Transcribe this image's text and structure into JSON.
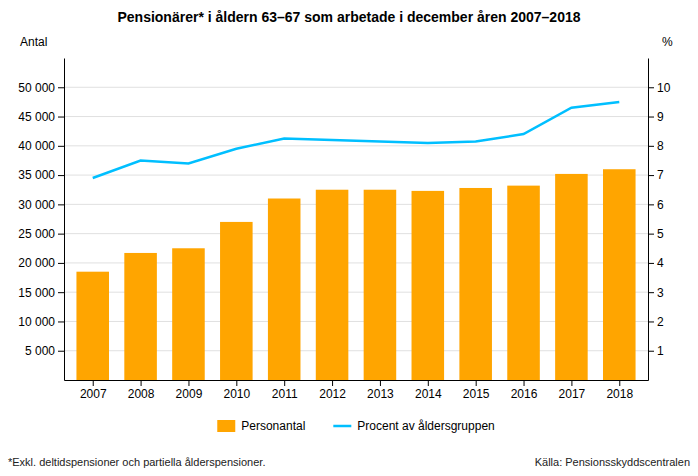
{
  "chart_data": {
    "type": "bar",
    "title": "Pensionärer* i åldern 63–67 som arbetade i december åren 2007–2018",
    "x": [
      2007,
      2008,
      2009,
      2010,
      2011,
      2012,
      2013,
      2014,
      2015,
      2016,
      2017,
      2018
    ],
    "xlim": [
      2006.4,
      2018.6
    ],
    "xticks": [
      2007,
      2008,
      2009,
      2010,
      2011,
      2012,
      2013,
      2014,
      2015,
      2016,
      2017,
      2018
    ],
    "series": [
      {
        "name": "Personantal",
        "type": "bar",
        "color": "#FFA500",
        "values": [
          18500,
          21700,
          22500,
          27000,
          31000,
          32500,
          32500,
          32300,
          32800,
          33200,
          35200,
          36000
        ]
      },
      {
        "name": "Procent av åldersgruppen",
        "type": "line",
        "color": "#00BFFF",
        "axis": "y2",
        "values": [
          6.9,
          7.5,
          7.4,
          7.9,
          8.25,
          8.2,
          8.15,
          8.1,
          8.15,
          8.4,
          9.3,
          9.5
        ]
      }
    ],
    "ylabel": "Antal",
    "y2label": "%",
    "ylim": [
      0,
      55000
    ],
    "yticks": [
      {
        "value": 5000,
        "label": "5 000"
      },
      {
        "value": 10000,
        "label": "10 000"
      },
      {
        "value": 15000,
        "label": "15 000"
      },
      {
        "value": 20000,
        "label": "20 000"
      },
      {
        "value": 25000,
        "label": "25 000"
      },
      {
        "value": 30000,
        "label": "30 000"
      },
      {
        "value": 35000,
        "label": "35 000"
      },
      {
        "value": 40000,
        "label": "40 000"
      },
      {
        "value": 45000,
        "label": "45 000"
      },
      {
        "value": 50000,
        "label": "50 000"
      }
    ],
    "y2lim": [
      0,
      11
    ],
    "y2ticks": [
      1,
      2,
      3,
      4,
      5,
      6,
      7,
      8,
      9,
      10
    ],
    "grid": true,
    "legend": "bottom",
    "annotations": [
      "*Exkl. deltidspensioner och partiella ålderspensioner.",
      "Källa: Pensionsskyddscentralen"
    ]
  }
}
